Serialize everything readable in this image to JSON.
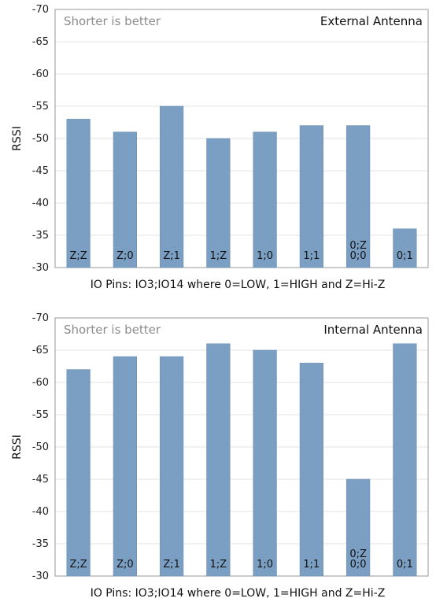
{
  "chart_data": [
    {
      "type": "bar",
      "title": "External Antenna",
      "note": "Shorter is better",
      "ylabel": "RSSI",
      "xlabel": "IO Pins:  IO3;IO14 where 0=LOW, 1=HIGH and Z=Hi-Z",
      "ylim": [
        -30,
        -70
      ],
      "yticks": [
        -70,
        -65,
        -60,
        -55,
        -50,
        -45,
        -40,
        -35,
        -30
      ],
      "grid": true,
      "categories": [
        [
          "Z;Z"
        ],
        [
          "Z;0"
        ],
        [
          "Z;1"
        ],
        [
          "1;Z"
        ],
        [
          "1;0"
        ],
        [
          "1;1"
        ],
        [
          "0;Z",
          "0;0"
        ],
        [
          "0;1"
        ]
      ],
      "values": [
        -53,
        -51,
        -55,
        -50,
        -51,
        -52,
        -52,
        -36
      ]
    },
    {
      "type": "bar",
      "title": "Internal Antenna",
      "note": "Shorter is better",
      "ylabel": "RSSI",
      "xlabel": "IO Pins:  IO3;IO14 where 0=LOW, 1=HIGH and Z=Hi-Z",
      "ylim": [
        -30,
        -70
      ],
      "yticks": [
        -70,
        -65,
        -60,
        -55,
        -50,
        -45,
        -40,
        -35,
        -30
      ],
      "grid": true,
      "categories": [
        [
          "Z;Z"
        ],
        [
          "Z;0"
        ],
        [
          "Z;1"
        ],
        [
          "1;Z"
        ],
        [
          "1;0"
        ],
        [
          "1;1"
        ],
        [
          "0;Z",
          "0;0"
        ],
        [
          "0;1"
        ]
      ],
      "values": [
        -62,
        -64,
        -64,
        -66,
        -65,
        -63,
        -45,
        -66
      ]
    }
  ]
}
